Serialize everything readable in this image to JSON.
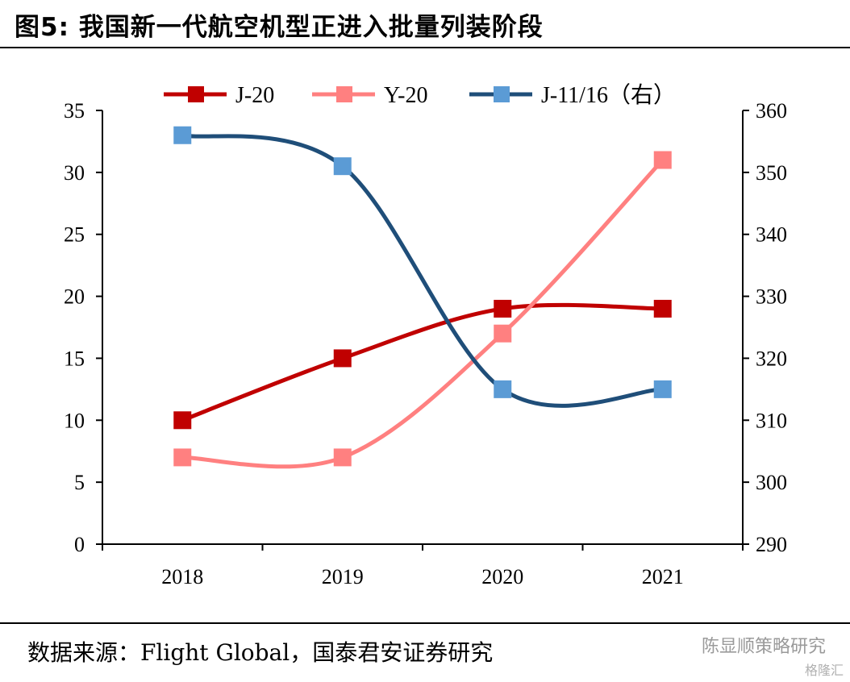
{
  "header": {
    "title": "图5: 我国新一代航空机型正进入批量列装阶段"
  },
  "footer": {
    "source": "数据来源：Flight Global，国泰君安证券研究",
    "watermark": "陈显顺策略研究",
    "watermark2": "格隆汇"
  },
  "colors": {
    "j20": "#C00000",
    "y20": "#FF8080",
    "j1116_line": "#1F4E79",
    "j1116_marker": "#5B9BD5"
  },
  "chart_data": {
    "type": "line",
    "categories": [
      "2018",
      "2019",
      "2020",
      "2021"
    ],
    "series": [
      {
        "name": "J-20",
        "axis": "left",
        "values": [
          10,
          15,
          19,
          19
        ]
      },
      {
        "name": "Y-20",
        "axis": "left",
        "values": [
          7,
          7,
          17,
          31
        ]
      },
      {
        "name": "J-11/16（右）",
        "axis": "right",
        "values": [
          356,
          351,
          315,
          315
        ]
      }
    ],
    "ylim_left": [
      0,
      35
    ],
    "yticks_left": [
      "0",
      "5",
      "10",
      "15",
      "20",
      "25",
      "30",
      "35"
    ],
    "ylim_right": [
      290,
      360
    ],
    "yticks_right": [
      "290",
      "300",
      "310",
      "320",
      "330",
      "340",
      "350",
      "360"
    ],
    "legend_position": "top",
    "grid": false
  }
}
